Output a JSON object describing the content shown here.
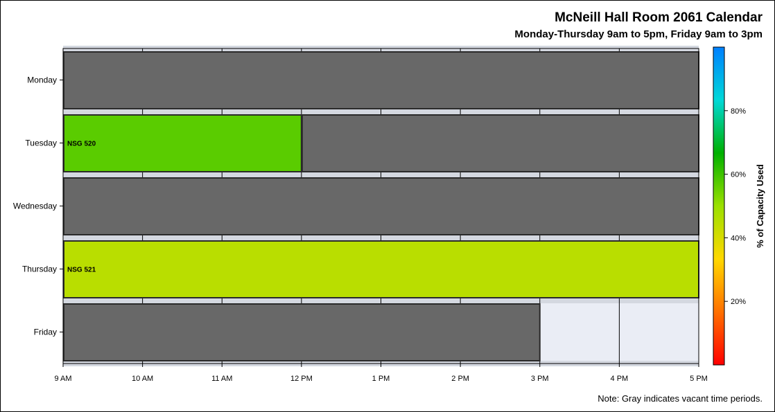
{
  "chart_data": {
    "type": "timeline",
    "title": "McNeill Hall Room 2061 Calendar",
    "subtitle": "Monday-Thursday 9am to 5pm, Friday 9am to 3pm",
    "note": "Note: Gray indicates vacant time periods.",
    "x_ticks": [
      {
        "hour": 9,
        "label": "9 AM"
      },
      {
        "hour": 10,
        "label": "10 AM"
      },
      {
        "hour": 11,
        "label": "11 AM"
      },
      {
        "hour": 12,
        "label": "12 PM"
      },
      {
        "hour": 13,
        "label": "1 PM"
      },
      {
        "hour": 14,
        "label": "2 PM"
      },
      {
        "hour": 15,
        "label": "3 PM"
      },
      {
        "hour": 16,
        "label": "4 PM"
      },
      {
        "hour": 17,
        "label": "5 PM"
      }
    ],
    "xlim": [
      9,
      17
    ],
    "days": [
      "Monday",
      "Tuesday",
      "Wednesday",
      "Thursday",
      "Friday"
    ],
    "blocks": [
      {
        "day": "Monday",
        "start": 9,
        "end": 17,
        "status": "vacant",
        "label": ""
      },
      {
        "day": "Tuesday",
        "start": 9,
        "end": 12,
        "status": "booked",
        "label": "NSG 520",
        "capacity_pct": 57
      },
      {
        "day": "Tuesday",
        "start": 12,
        "end": 17,
        "status": "vacant",
        "label": ""
      },
      {
        "day": "Wednesday",
        "start": 9,
        "end": 17,
        "status": "vacant",
        "label": ""
      },
      {
        "day": "Thursday",
        "start": 9,
        "end": 17,
        "status": "booked",
        "label": "NSG 521",
        "capacity_pct": 45
      },
      {
        "day": "Friday",
        "start": 9,
        "end": 15,
        "status": "vacant",
        "label": ""
      }
    ],
    "colorbar": {
      "label": "% of Capacity Used",
      "range": [
        0,
        100
      ],
      "ticks": [
        {
          "value": 20,
          "label": "20%"
        },
        {
          "value": 40,
          "label": "40%"
        },
        {
          "value": 60,
          "label": "60%"
        },
        {
          "value": 80,
          "label": "80%"
        }
      ],
      "stops": [
        "#ff0000",
        "#ff7000",
        "#ffd800",
        "#9be000",
        "#00b000",
        "#00d8d8",
        "#0080ff"
      ]
    },
    "colors": {
      "vacant": "#686868",
      "background": "#eaedf5",
      "band": "#d4d8e0"
    }
  }
}
